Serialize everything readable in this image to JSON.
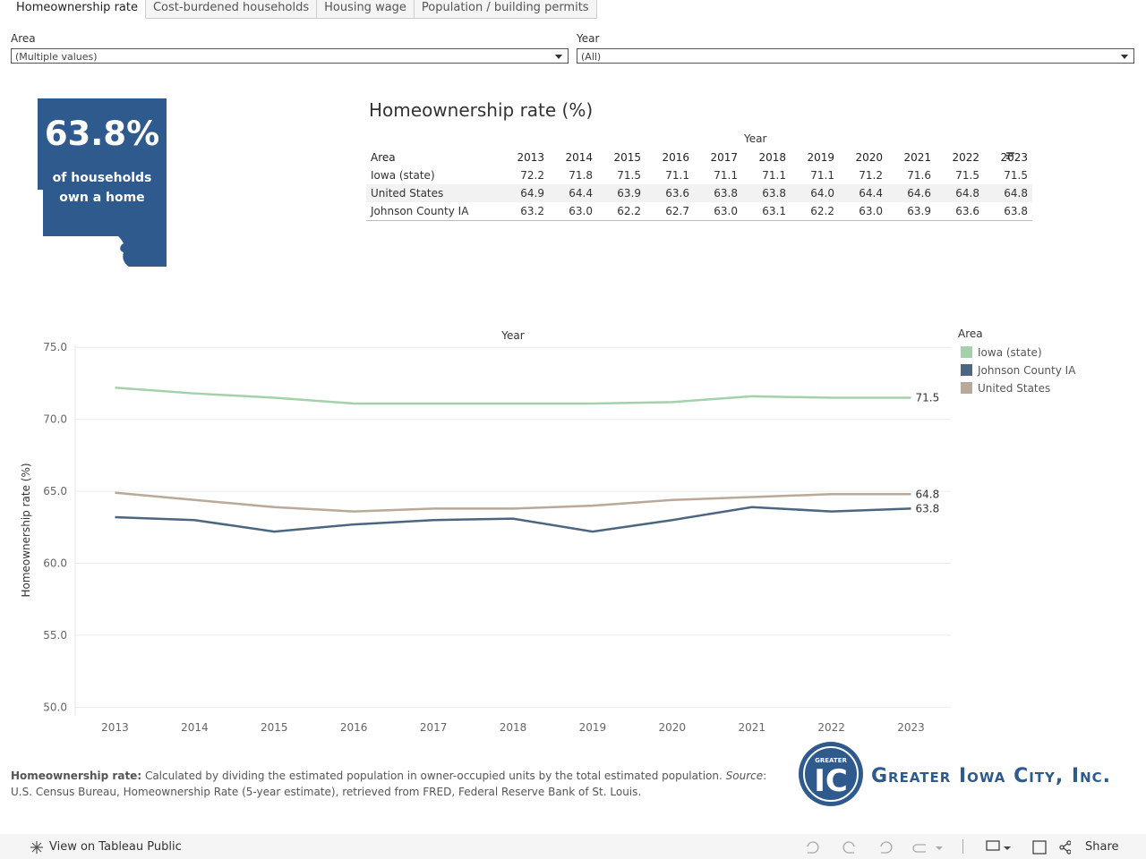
{
  "tabs": [
    "Homeownership rate",
    "Cost-burdened households",
    "Housing wage",
    "Population / building permits"
  ],
  "filters": [
    {
      "label": "Area",
      "value": "(Multiple values)"
    },
    {
      "label": "Year",
      "value": "(All)"
    }
  ],
  "kpi": {
    "value": "63.8%",
    "text_lines": [
      "of households",
      "own a home"
    ]
  },
  "table": {
    "title": "Homeownership rate (%)",
    "column_group": "Year",
    "header": [
      "Area",
      "2013",
      "2014",
      "2015",
      "2016",
      "2017",
      "2018",
      "2019",
      "2020",
      "2021",
      "2022",
      "2023"
    ],
    "rows": [
      [
        "Iowa (state)",
        "72.2",
        "71.8",
        "71.5",
        "71.1",
        "71.1",
        "71.1",
        "71.1",
        "71.2",
        "71.6",
        "71.5",
        "71.5"
      ],
      [
        "United States",
        "64.9",
        "64.4",
        "63.9",
        "63.6",
        "63.8",
        "63.8",
        "64.0",
        "64.4",
        "64.6",
        "64.8",
        "64.8"
      ],
      [
        "Johnson County IA",
        "63.2",
        "63.0",
        "62.2",
        "62.7",
        "63.0",
        "63.1",
        "62.2",
        "63.0",
        "63.9",
        "63.6",
        "63.8"
      ]
    ]
  },
  "chart_data": {
    "type": "line",
    "x_axis_title": "Year",
    "y_axis_title": "Homeownership rate (%)",
    "categories": [
      "2013",
      "2014",
      "2015",
      "2016",
      "2017",
      "2018",
      "2019",
      "2020",
      "2021",
      "2022",
      "2023"
    ],
    "ylim": [
      49.4,
      75.2
    ],
    "yticks": [
      {
        "value": 50,
        "label": "50.0"
      },
      {
        "value": 55,
        "label": "55.0"
      },
      {
        "value": 60,
        "label": "60.0"
      },
      {
        "value": 65,
        "label": "65.0"
      },
      {
        "value": 70,
        "label": "70.0"
      },
      {
        "value": 75,
        "label": "75.0"
      }
    ],
    "grid": true,
    "end_labels": true,
    "legend_title": "Area",
    "legend_position": "right",
    "series": [
      {
        "name": "Iowa (state)",
        "color": "#a3d1aa",
        "values": [
          72.2,
          71.8,
          71.5,
          71.1,
          71.1,
          71.1,
          71.1,
          71.2,
          71.6,
          71.5,
          71.5
        ]
      },
      {
        "name": "Johnson County IA",
        "color": "#4b6680",
        "values": [
          63.2,
          63.0,
          62.2,
          62.7,
          63.0,
          63.1,
          62.2,
          63.0,
          63.9,
          63.6,
          63.8
        ]
      },
      {
        "name": "United States",
        "color": "#baa898",
        "values": [
          64.9,
          64.4,
          63.9,
          63.6,
          63.8,
          63.8,
          64.0,
          64.4,
          64.6,
          64.8,
          64.8
        ]
      }
    ]
  },
  "footnote": {
    "lead": "Homeownership rate:",
    "text": "Calculated by dividing the estimated population in owner-occupied units by the total estimated population.",
    "source_label": "Source",
    "source_text": ": U.S. Census Bureau, Homeownership Rate (5-year estimate), retrieved from FRED, Federal Reserve Bank of St. Louis."
  },
  "logo": {
    "badge_top": "GREATER",
    "badge_letters": "IC",
    "name": "Greater Iowa City, Inc."
  },
  "footer": {
    "link": "View on Tableau Public",
    "share": "Share"
  }
}
